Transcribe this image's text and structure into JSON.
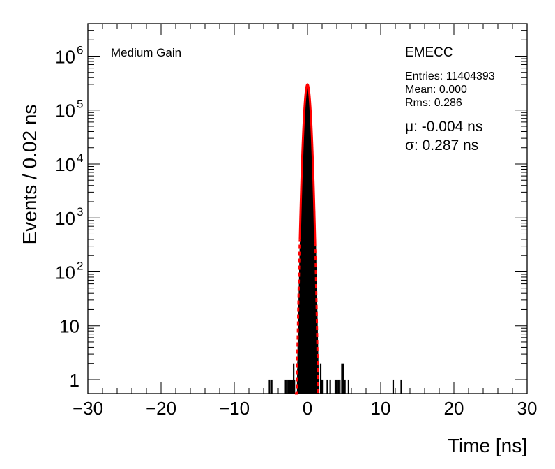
{
  "chart_data": {
    "type": "histogram",
    "xlabel": "Time [ns]",
    "ylabel": "Events / 0.02 ns",
    "xlim": [
      -30,
      30
    ],
    "ylim": [
      0.55,
      4000000
    ],
    "yscale": "log",
    "x_ticks": [
      -30,
      -20,
      -10,
      0,
      10,
      20,
      30
    ],
    "x_tick_labels": [
      "−30",
      "−20",
      "−10",
      "0",
      "10",
      "20",
      "30"
    ],
    "y_ticks": [
      {
        "value": 1,
        "base": "1",
        "exp": ""
      },
      {
        "value": 10,
        "base": "10",
        "exp": ""
      },
      {
        "value": 100,
        "base": "10",
        "exp": "2"
      },
      {
        "value": 1000,
        "base": "10",
        "exp": "3"
      },
      {
        "value": 10000,
        "base": "10",
        "exp": "4"
      },
      {
        "value": 100000,
        "base": "10",
        "exp": "5"
      },
      {
        "value": 1000000,
        "base": "10",
        "exp": "6"
      }
    ],
    "label_left": "Medium Gain",
    "label_right": "EMECC",
    "stats": {
      "entries": "Entries: 11404393",
      "mean": "Mean: 0.000",
      "rms": "Rms: 0.286"
    },
    "fit": {
      "mu_text": "μ: -0.004 ns",
      "sigma_text": "σ: 0.287 ns",
      "mu": -0.004,
      "sigma": 0.287,
      "peak": 300000,
      "color": "#ff0000",
      "range": [
        -1.72,
        1.72
      ]
    },
    "histogram_color": "#000000",
    "outlier_bins": [
      {
        "x": -5.2,
        "y": 1
      },
      {
        "x": -4.9,
        "y": 1
      },
      {
        "x": -3.0,
        "y": 1
      },
      {
        "x": -2.8,
        "y": 1
      },
      {
        "x": -2.6,
        "y": 1
      },
      {
        "x": -2.4,
        "y": 1
      },
      {
        "x": -2.2,
        "y": 1
      },
      {
        "x": -2.0,
        "y": 1
      },
      {
        "x": -1.9,
        "y": 2
      },
      {
        "x": -1.8,
        "y": 1
      },
      {
        "x": 1.8,
        "y": 2
      },
      {
        "x": 1.9,
        "y": 1
      },
      {
        "x": 2.0,
        "y": 1
      },
      {
        "x": 2.7,
        "y": 1
      },
      {
        "x": 3.1,
        "y": 1
      },
      {
        "x": 3.8,
        "y": 1
      },
      {
        "x": 4.0,
        "y": 1
      },
      {
        "x": 4.2,
        "y": 1
      },
      {
        "x": 4.4,
        "y": 1
      },
      {
        "x": 4.7,
        "y": 2
      },
      {
        "x": 4.9,
        "y": 2
      },
      {
        "x": 5.1,
        "y": 1
      },
      {
        "x": 5.6,
        "y": 1
      },
      {
        "x": 11.7,
        "y": 1
      },
      {
        "x": 12.8,
        "y": 1
      }
    ]
  }
}
